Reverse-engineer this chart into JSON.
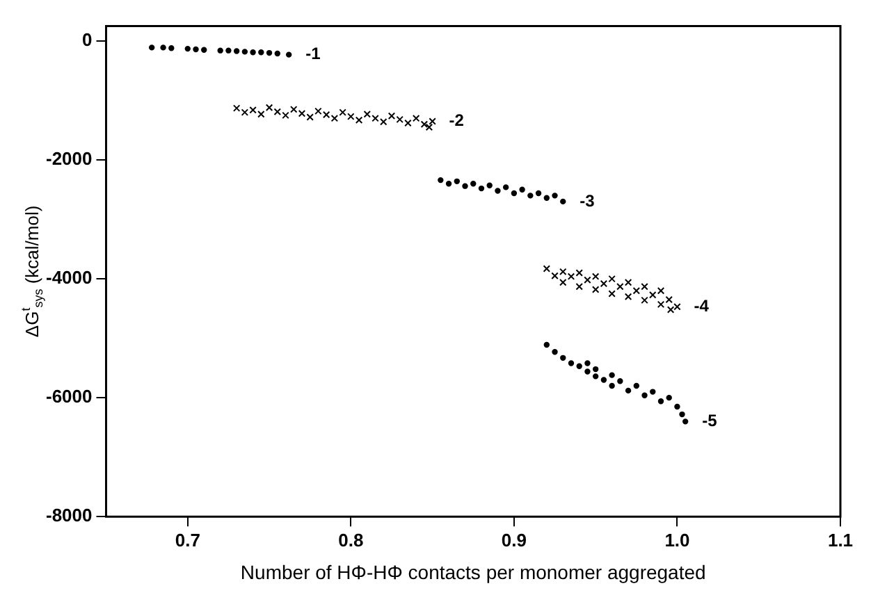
{
  "chart_data": {
    "type": "scatter",
    "xlabel": "Number of HΦ-HΦ contacts per monomer aggregated",
    "ylabel": "ΔG$^{t}$$_{sys}$ (kcal/mol)",
    "xlim": [
      0.65,
      1.1
    ],
    "xticks": [
      {
        "value": 0.7,
        "label": "0.7"
      },
      {
        "value": 0.8,
        "label": "0.8"
      },
      {
        "value": 0.9,
        "label": "0.9"
      },
      {
        "value": 1.0,
        "label": "1.0"
      },
      {
        "value": 1.1,
        "label": "1.1"
      }
    ],
    "ylim": [
      -8000,
      250
    ],
    "yticks": [
      -8000,
      -6000,
      -4000,
      -2000,
      0
    ],
    "grid": false,
    "legend": false,
    "series": [
      {
        "color": "#000000",
        "marker": "circle",
        "x": [
          0.678,
          0.685,
          0.69,
          0.7,
          0.705,
          0.71,
          0.72,
          0.725,
          0.73,
          0.735,
          0.74,
          0.745,
          0.75,
          0.755,
          0.762
        ],
        "values": [
          -110,
          -110,
          -120,
          -130,
          -140,
          -150,
          -160,
          -160,
          -170,
          -180,
          -190,
          -190,
          -200,
          -210,
          -230
        ]
      },
      {
        "color": "#000000",
        "marker": "cross",
        "x": [
          0.73,
          0.735,
          0.74,
          0.745,
          0.75,
          0.755,
          0.76,
          0.765,
          0.77,
          0.775,
          0.78,
          0.785,
          0.79,
          0.795,
          0.8,
          0.805,
          0.81,
          0.815,
          0.82,
          0.825,
          0.83,
          0.835,
          0.84,
          0.845,
          0.85,
          0.848
        ],
        "values": [
          -1130,
          -1200,
          -1160,
          -1230,
          -1120,
          -1190,
          -1250,
          -1150,
          -1220,
          -1280,
          -1180,
          -1240,
          -1300,
          -1200,
          -1270,
          -1330,
          -1230,
          -1300,
          -1360,
          -1260,
          -1320,
          -1380,
          -1300,
          -1400,
          -1350,
          -1450
        ]
      },
      {
        "color": "#000000",
        "marker": "circle",
        "x": [
          0.855,
          0.86,
          0.865,
          0.87,
          0.875,
          0.88,
          0.885,
          0.89,
          0.895,
          0.9,
          0.905,
          0.91,
          0.915,
          0.92,
          0.925,
          0.93
        ],
        "values": [
          -2340,
          -2400,
          -2360,
          -2440,
          -2400,
          -2480,
          -2430,
          -2520,
          -2460,
          -2560,
          -2500,
          -2600,
          -2560,
          -2640,
          -2600,
          -2700
        ]
      },
      {
        "color": "#000000",
        "marker": "cross",
        "x": [
          0.92,
          0.925,
          0.93,
          0.93,
          0.935,
          0.94,
          0.94,
          0.945,
          0.95,
          0.95,
          0.955,
          0.96,
          0.96,
          0.965,
          0.97,
          0.97,
          0.975,
          0.98,
          0.98,
          0.985,
          0.99,
          0.99,
          0.995,
          1.0,
          0.996
        ],
        "values": [
          -3830,
          -3950,
          -3880,
          -4060,
          -3960,
          -3900,
          -4130,
          -4020,
          -3960,
          -4180,
          -4080,
          -4000,
          -4250,
          -4130,
          -4060,
          -4300,
          -4200,
          -4130,
          -4360,
          -4270,
          -4200,
          -4430,
          -4350,
          -4470,
          -4520
        ]
      },
      {
        "color": "#000000",
        "marker": "circle",
        "x": [
          0.92,
          0.925,
          0.93,
          0.935,
          0.94,
          0.945,
          0.945,
          0.95,
          0.95,
          0.955,
          0.96,
          0.96,
          0.965,
          0.97,
          0.975,
          0.98,
          0.985,
          0.99,
          0.995,
          1.0,
          1.003,
          1.005
        ],
        "values": [
          -5110,
          -5230,
          -5330,
          -5420,
          -5470,
          -5560,
          -5420,
          -5640,
          -5520,
          -5700,
          -5620,
          -5800,
          -5720,
          -5880,
          -5800,
          -5960,
          -5900,
          -6060,
          -6000,
          -6150,
          -6280,
          -6400
        ]
      }
    ],
    "annotations": [
      {
        "text": "-1",
        "x": 0.762,
        "y": -230
      },
      {
        "text": "-2",
        "x": 0.85,
        "y": -1350
      },
      {
        "text": "-3",
        "x": 0.93,
        "y": -2700
      },
      {
        "text": "-4",
        "x": 1.0,
        "y": -4470
      },
      {
        "text": "-5",
        "x": 1.005,
        "y": -6400
      }
    ]
  }
}
